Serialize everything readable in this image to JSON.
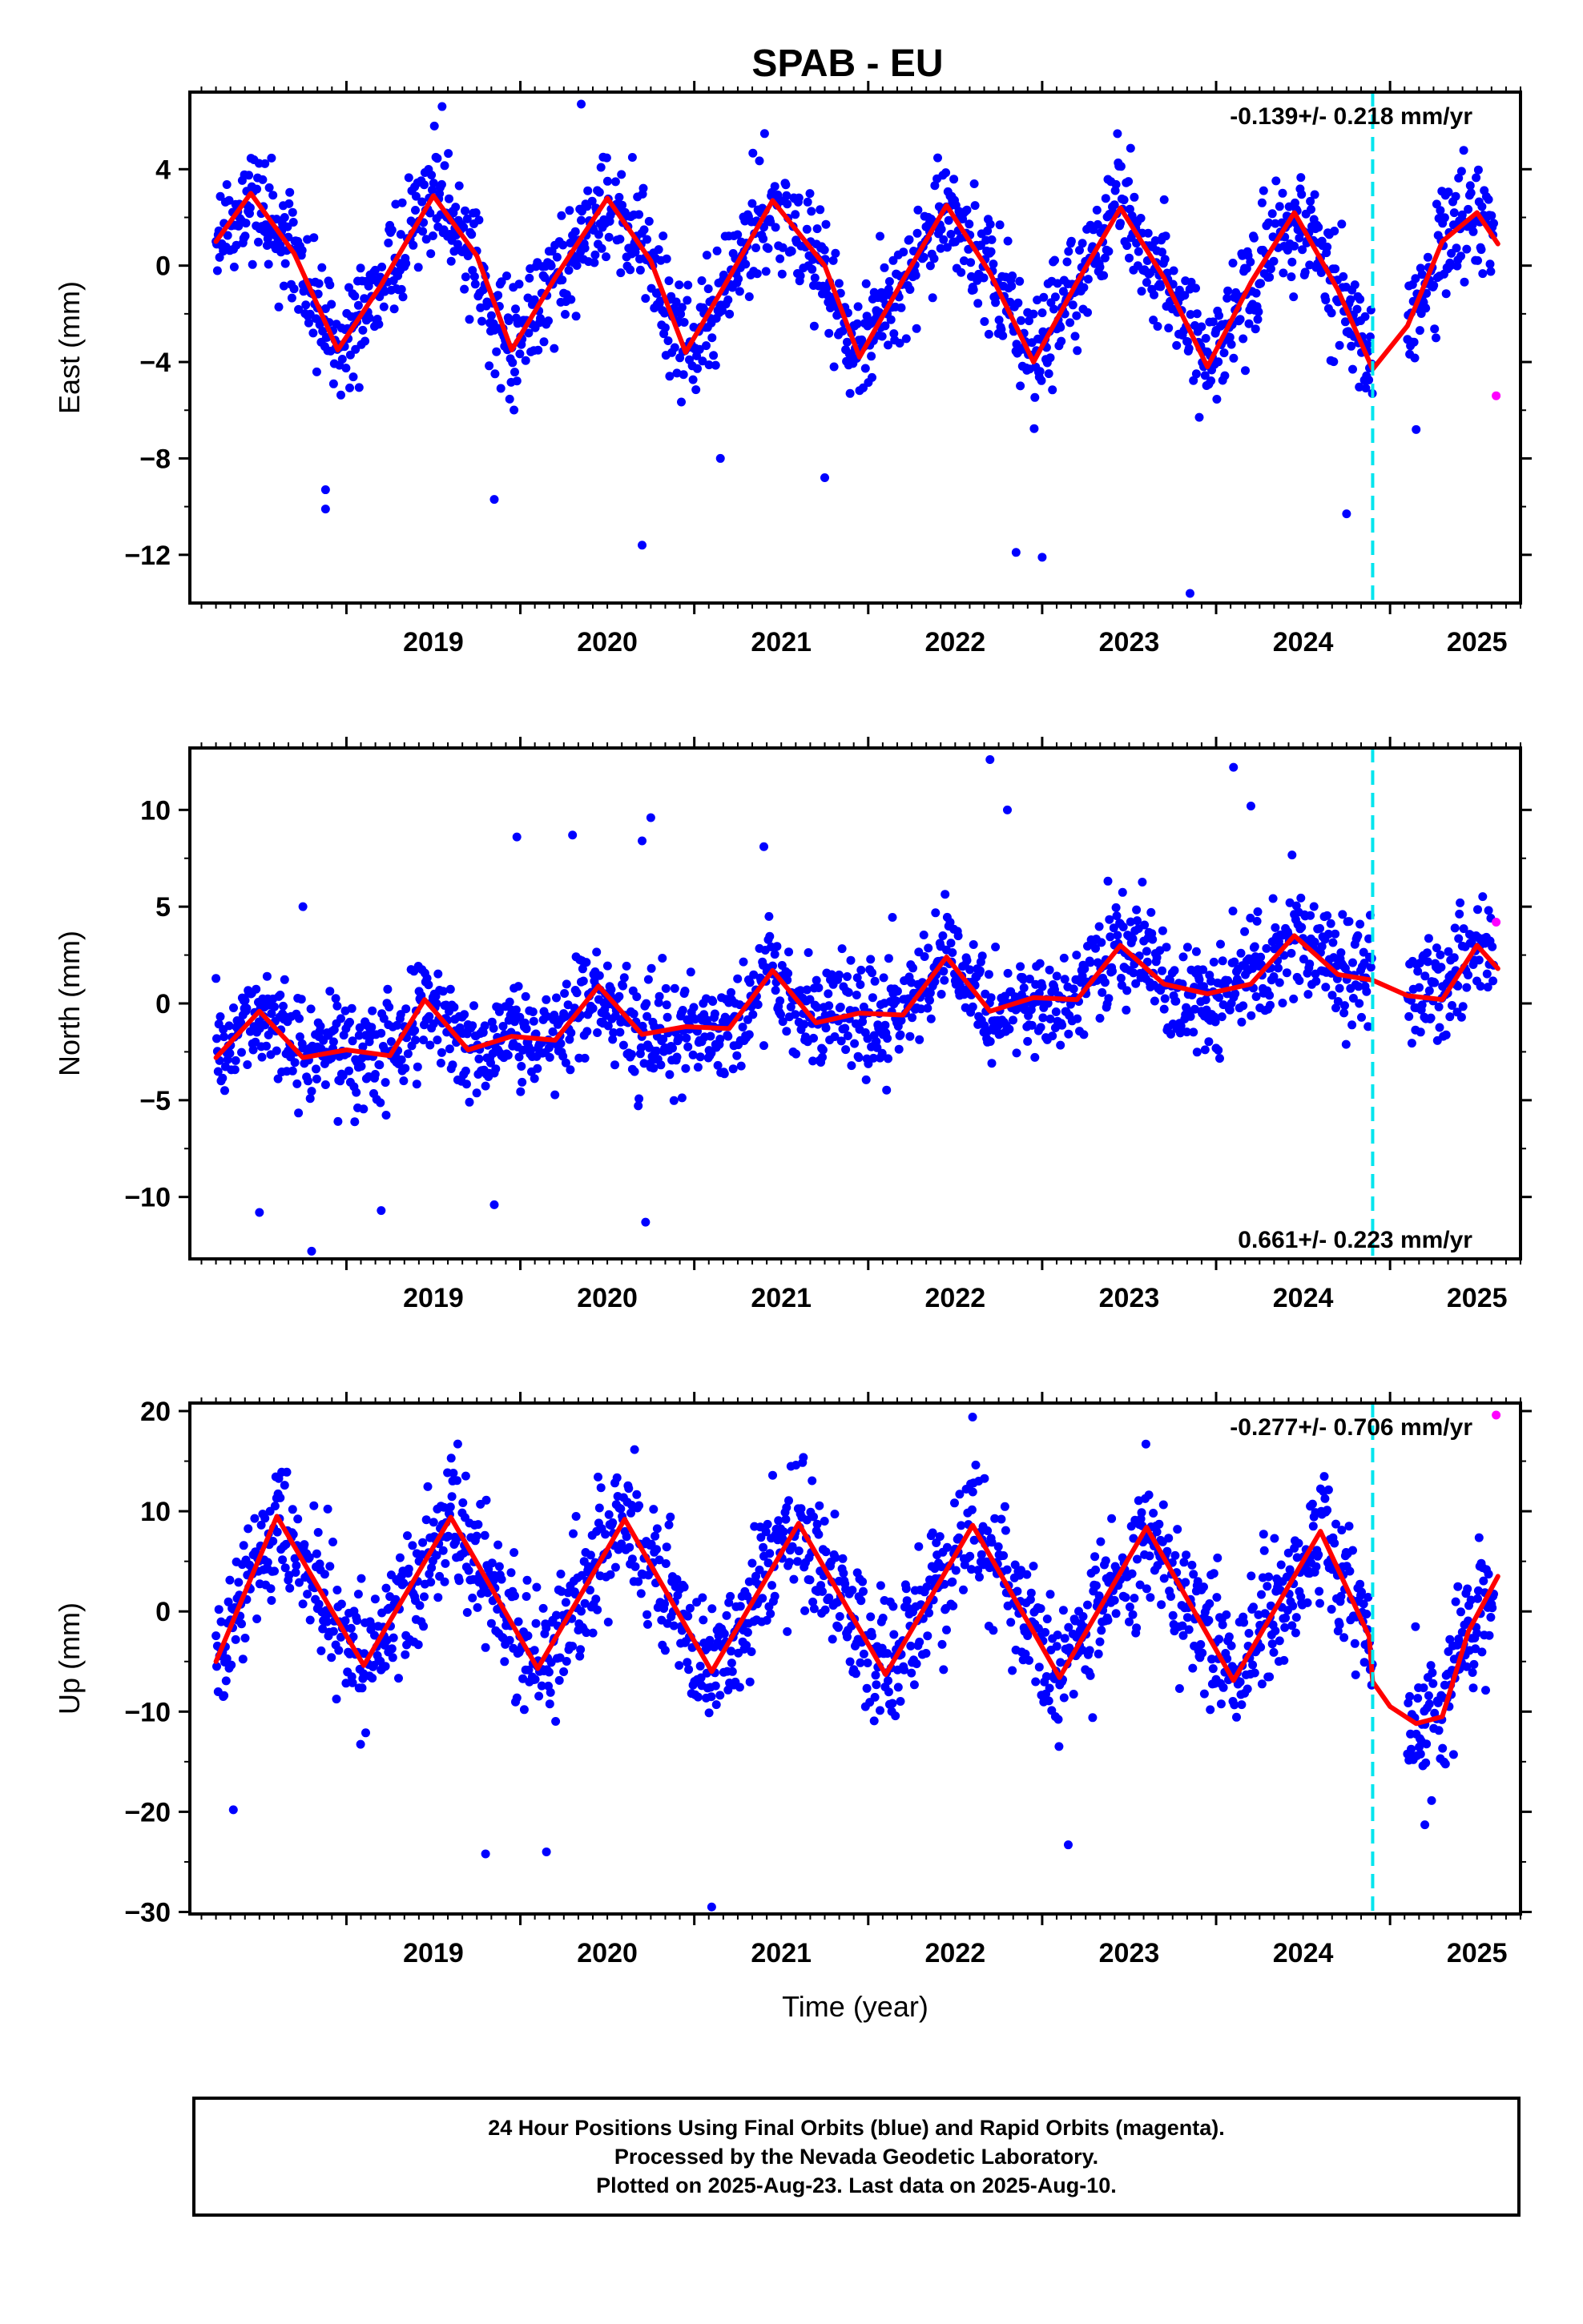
{
  "title": "SPAB - EU",
  "colors": {
    "final_orbits": "#0000ff",
    "rapid_orbits": "#ff00ff",
    "model": "#ff0000",
    "equipment_change": "#00e5ee",
    "frame": "#000000"
  },
  "chart_data": [
    {
      "type": "scatter",
      "ylabel": "East (mm)",
      "xlabel": "",
      "xlim": [
        2018.1,
        2025.75
      ],
      "ylim": [
        -14,
        7.2
      ],
      "y_ticks": [
        4,
        0,
        -4,
        -8,
        -12
      ],
      "x_ticks": [
        2019,
        2020,
        2021,
        2022,
        2023,
        2024,
        2025
      ],
      "rate_label": "-0.139+/- 0.218 mm/yr",
      "rate_position": "top-right",
      "equipment_change_x": 2024.9,
      "model_fit": {
        "x": [
          2018.25,
          2018.45,
          2018.7,
          2018.95,
          2019.2,
          2019.5,
          2019.75,
          2019.95,
          2020.2,
          2020.5,
          2020.75,
          2020.95,
          2021.2,
          2021.45,
          2021.75,
          2021.95,
          2022.2,
          2022.45,
          2022.7,
          2022.95,
          2023.2,
          2023.45,
          2023.7,
          2023.95,
          2024.2,
          2024.45,
          2024.7,
          2024.9,
          2025.1,
          2025.3,
          2025.5,
          2025.62
        ],
        "y": [
          1.0,
          3.0,
          0.5,
          -3.5,
          -0.8,
          2.9,
          0.4,
          -3.5,
          -0.5,
          2.8,
          0.2,
          -3.6,
          -0.5,
          2.7,
          0.0,
          -3.8,
          -0.6,
          2.5,
          -0.3,
          -4.0,
          -0.7,
          2.4,
          -0.5,
          -4.2,
          -0.7,
          2.2,
          -1.0,
          -4.3,
          -2.5,
          1.0,
          2.2,
          0.9
        ]
      },
      "final_orbits_summary": {
        "x_range": [
          2018.25,
          2025.6
        ],
        "scatter_sd_mm": 1.2,
        "data_gap": [
          2024.9,
          2025.1
        ],
        "outliers": [
          {
            "x": 2018.88,
            "y": -10.1
          },
          {
            "x": 2018.88,
            "y": -9.3
          },
          {
            "x": 2019.55,
            "y": 6.6
          },
          {
            "x": 2019.85,
            "y": -9.7
          },
          {
            "x": 2020.35,
            "y": 6.7
          },
          {
            "x": 2020.7,
            "y": -11.6
          },
          {
            "x": 2021.15,
            "y": -8.0
          },
          {
            "x": 2021.75,
            "y": -8.8
          },
          {
            "x": 2022.85,
            "y": -11.9
          },
          {
            "x": 2023.0,
            "y": -12.1
          },
          {
            "x": 2023.85,
            "y": -13.6
          },
          {
            "x": 2024.75,
            "y": -10.3
          },
          {
            "x": 2025.15,
            "y": -6.8
          }
        ]
      },
      "rapid_orbits": [
        {
          "x": 2025.61,
          "y": -5.4
        }
      ]
    },
    {
      "type": "scatter",
      "ylabel": "North (mm)",
      "xlabel": "",
      "xlim": [
        2018.1,
        2025.75
      ],
      "ylim": [
        -13.2,
        13.2
      ],
      "y_ticks": [
        10,
        5,
        0,
        -5,
        -10
      ],
      "x_ticks": [
        2019,
        2020,
        2021,
        2022,
        2023,
        2024,
        2025
      ],
      "rate_label": "0.661+/- 0.223 mm/yr",
      "rate_position": "bottom-right",
      "equipment_change_x": 2024.9,
      "model_fit": {
        "x": [
          2018.25,
          2018.5,
          2018.75,
          2019.0,
          2019.25,
          2019.45,
          2019.7,
          2019.95,
          2020.2,
          2020.45,
          2020.7,
          2020.95,
          2021.2,
          2021.45,
          2021.7,
          2021.95,
          2022.2,
          2022.45,
          2022.7,
          2022.95,
          2023.2,
          2023.45,
          2023.7,
          2023.95,
          2024.2,
          2024.45,
          2024.7,
          2024.9,
          2025.1,
          2025.3,
          2025.5,
          2025.62
        ],
        "y": [
          -2.8,
          -0.4,
          -2.8,
          -2.4,
          -2.7,
          0.2,
          -2.4,
          -1.7,
          -1.9,
          0.9,
          -1.6,
          -1.2,
          -1.3,
          1.7,
          -1.0,
          -0.5,
          -0.6,
          2.4,
          -0.4,
          0.3,
          0.2,
          3.0,
          1.0,
          0.5,
          1.0,
          3.5,
          1.5,
          1.2,
          0.4,
          0.2,
          3.0,
          1.8
        ]
      },
      "final_orbits_summary": {
        "x_range": [
          2018.25,
          2025.6
        ],
        "scatter_sd_mm": 1.4,
        "data_gap": [
          2024.9,
          2025.1
        ],
        "outliers": [
          {
            "x": 2018.5,
            "y": -10.8
          },
          {
            "x": 2018.75,
            "y": 5.0
          },
          {
            "x": 2018.8,
            "y": -12.8
          },
          {
            "x": 2019.2,
            "y": -10.7
          },
          {
            "x": 2019.85,
            "y": -10.4
          },
          {
            "x": 2019.98,
            "y": 8.6
          },
          {
            "x": 2020.3,
            "y": 8.7
          },
          {
            "x": 2020.7,
            "y": 8.4
          },
          {
            "x": 2020.75,
            "y": 9.6
          },
          {
            "x": 2020.72,
            "y": -11.3
          },
          {
            "x": 2021.4,
            "y": 8.1
          },
          {
            "x": 2022.7,
            "y": 12.6
          },
          {
            "x": 2022.8,
            "y": 10.0
          },
          {
            "x": 2024.1,
            "y": 12.2
          },
          {
            "x": 2024.2,
            "y": 10.2
          }
        ]
      },
      "rapid_orbits": [
        {
          "x": 2025.61,
          "y": 4.2
        }
      ]
    },
    {
      "type": "scatter",
      "ylabel": "Up (mm)",
      "xlabel": "Time (year)",
      "xlim": [
        2018.1,
        2025.75
      ],
      "ylim": [
        -30.2,
        20.8
      ],
      "y_ticks": [
        20,
        10,
        0,
        -10,
        -20,
        -30
      ],
      "x_ticks": [
        2019,
        2020,
        2021,
        2022,
        2023,
        2024,
        2025
      ],
      "rate_label": "-0.277+/- 0.706 mm/yr",
      "rate_position": "top-right",
      "equipment_change_x": 2024.9,
      "model_fit": {
        "x": [
          2018.25,
          2018.6,
          2019.1,
          2019.6,
          2020.1,
          2020.6,
          2021.1,
          2021.6,
          2022.1,
          2022.6,
          2023.1,
          2023.6,
          2024.1,
          2024.6,
          2024.88,
          2024.9,
          2025.0,
          2025.15,
          2025.3,
          2025.45,
          2025.62
        ],
        "y": [
          -5.0,
          9.5,
          -5.4,
          9.4,
          -5.7,
          9.2,
          -6.0,
          8.8,
          -6.3,
          8.6,
          -6.6,
          8.4,
          -6.9,
          8.0,
          -2.5,
          -7.0,
          -9.5,
          -11.2,
          -10.5,
          -2.0,
          3.5
        ]
      },
      "final_orbits_summary": {
        "x_range": [
          2018.25,
          2025.6
        ],
        "scatter_sd_mm": 3.2,
        "data_gap": [
          2024.9,
          2025.1
        ],
        "outliers": [
          {
            "x": 2018.35,
            "y": -19.8
          },
          {
            "x": 2019.8,
            "y": -24.2
          },
          {
            "x": 2020.15,
            "y": -24.0
          },
          {
            "x": 2021.1,
            "y": -29.5
          },
          {
            "x": 2022.6,
            "y": 19.4
          },
          {
            "x": 2023.15,
            "y": -23.3
          },
          {
            "x": 2025.2,
            "y": -21.3
          }
        ]
      },
      "rapid_orbits": [
        {
          "x": 2025.61,
          "y": 19.6
        }
      ]
    }
  ],
  "footer": {
    "line1": "24 Hour Positions Using Final Orbits (blue) and Rapid Orbits (magenta).",
    "line2": "Processed by the Nevada Geodetic Laboratory.",
    "line3": "Plotted on 2025-Aug-23. Last data on 2025-Aug-10."
  }
}
